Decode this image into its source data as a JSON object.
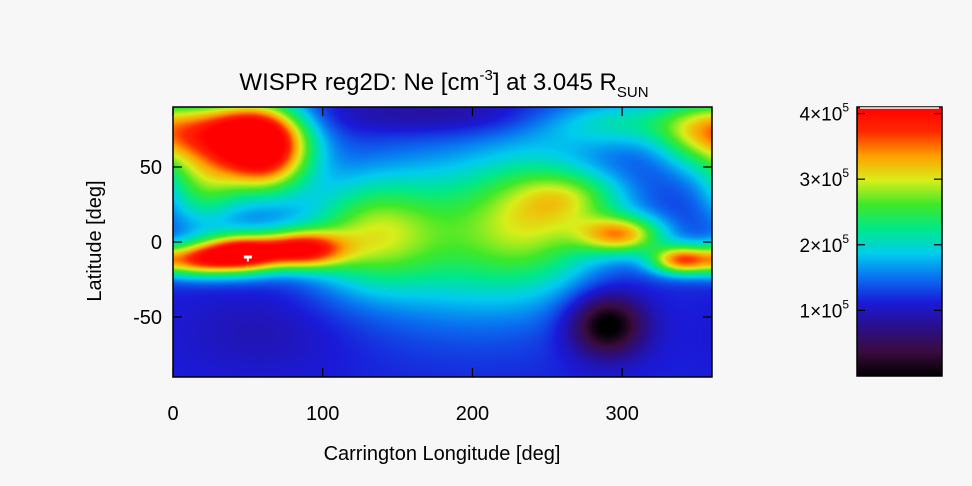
{
  "chart_data": {
    "type": "heatmap",
    "title": {
      "prefix": "WISPR reg2D: Ne [cm",
      "prefix_sup": "-3",
      "mid": "] at 3.045 R",
      "sub": "SUN"
    },
    "xlabel": "Carrington Longitude [deg]",
    "ylabel": "Latitude [deg]",
    "xlim": [
      0,
      360
    ],
    "ylim": [
      -90,
      90
    ],
    "x_ticks": [
      0,
      100,
      200,
      300
    ],
    "y_ticks": [
      50,
      0,
      -50
    ],
    "x_tick_labels": [
      "0",
      "100",
      "200",
      "300"
    ],
    "y_tick_labels": [
      "50",
      "0",
      "-50"
    ],
    "colorbar": {
      "range": [
        0,
        410000
      ],
      "ticks": [
        {
          "value": 100000,
          "mantissa": "1",
          "exp": "5"
        },
        {
          "value": 200000,
          "mantissa": "2",
          "exp": "5"
        },
        {
          "value": 300000,
          "mantissa": "3",
          "exp": "5"
        },
        {
          "value": 400000,
          "mantissa": "4",
          "exp": "5"
        }
      ],
      "times_sign": "×",
      "base": "10",
      "stops": [
        "#000000",
        "#3a0c3e",
        "#2a0f8a",
        "#1a1ad8",
        "#0a6ef0",
        "#00ccee",
        "#00e88a",
        "#3ee82a",
        "#d8ee1a",
        "#ffa000",
        "#ff2800",
        "#ff0000"
      ]
    },
    "grid": false,
    "field": {
      "background": 0.28,
      "blobs": [
        {
          "lon": 60,
          "lat": 62,
          "amp": 0.75,
          "slon": 22,
          "slat": 20
        },
        {
          "lon": 30,
          "lat": 75,
          "amp": 0.4,
          "slon": 30,
          "slat": 14
        },
        {
          "lon": 20,
          "lat": 40,
          "amp": 0.3,
          "slon": 18,
          "slat": 22
        },
        {
          "lon": 45,
          "lat": -8,
          "amp": 0.72,
          "slon": 18,
          "slat": 9
        },
        {
          "lon": 85,
          "lat": -5,
          "amp": 0.6,
          "slon": 20,
          "slat": 9
        },
        {
          "lon": 15,
          "lat": -12,
          "amp": 0.45,
          "slon": 16,
          "slat": 8
        },
        {
          "lon": 130,
          "lat": 5,
          "amp": 0.3,
          "slon": 30,
          "slat": 25
        },
        {
          "lon": 200,
          "lat": 5,
          "amp": 0.3,
          "slon": 55,
          "slat": 38
        },
        {
          "lon": 245,
          "lat": 18,
          "amp": 0.22,
          "slon": 30,
          "slat": 30
        },
        {
          "lon": 300,
          "lat": 5,
          "amp": 0.45,
          "slon": 20,
          "slat": 9
        },
        {
          "lon": 340,
          "lat": -12,
          "amp": 0.55,
          "slon": 15,
          "slat": 7
        },
        {
          "lon": 270,
          "lat": 30,
          "amp": 0.18,
          "slon": 25,
          "slat": 12
        },
        {
          "lon": 300,
          "lat": 80,
          "amp": 0.22,
          "slon": 40,
          "slat": 12
        },
        {
          "lon": 350,
          "lat": 70,
          "amp": 0.25,
          "slon": 20,
          "slat": 18
        },
        {
          "lon": 290,
          "lat": -55,
          "amp": -0.32,
          "slon": 18,
          "slat": 15
        },
        {
          "lon": 180,
          "lat": 85,
          "amp": -0.1,
          "slon": 60,
          "slat": 10
        },
        {
          "lon": 60,
          "lat": -60,
          "amp": -0.05,
          "slon": 40,
          "slat": 20
        }
      ],
      "marker": {
        "lon": 50,
        "lat": -10,
        "color": "#ffffff"
      }
    }
  }
}
